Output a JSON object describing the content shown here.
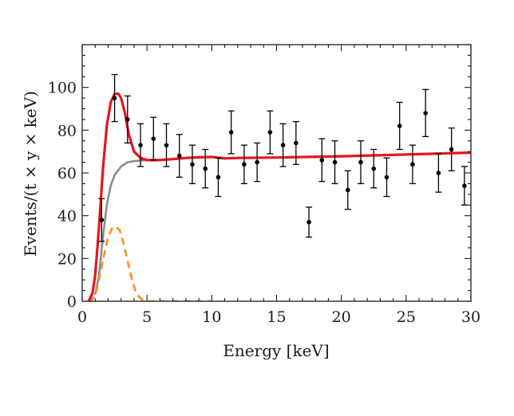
{
  "chart_data": {
    "type": "scatter",
    "title": "",
    "xlabel": "Energy [keV]",
    "ylabel": "Events/(t × y × keV)",
    "xlim": [
      0,
      30
    ],
    "ylim": [
      0,
      120
    ],
    "x_ticks": [
      0,
      5,
      10,
      15,
      20,
      25,
      30
    ],
    "y_ticks": [
      0,
      20,
      40,
      60,
      80,
      100
    ],
    "grid": false,
    "legend": "none",
    "series": [
      {
        "kind": "points_with_errorbars",
        "color": "#000000",
        "points": [
          {
            "x": 1.5,
            "y": 38,
            "err": 10
          },
          {
            "x": 2.5,
            "y": 95,
            "err": 11
          },
          {
            "x": 3.5,
            "y": 85,
            "err": 11
          },
          {
            "x": 4.5,
            "y": 73,
            "err": 10
          },
          {
            "x": 5.5,
            "y": 76,
            "err": 10
          },
          {
            "x": 6.5,
            "y": 73,
            "err": 10
          },
          {
            "x": 7.5,
            "y": 68,
            "err": 10
          },
          {
            "x": 8.5,
            "y": 64,
            "err": 9
          },
          {
            "x": 9.5,
            "y": 62,
            "err": 9
          },
          {
            "x": 10.5,
            "y": 58,
            "err": 9
          },
          {
            "x": 11.5,
            "y": 79,
            "err": 10
          },
          {
            "x": 12.5,
            "y": 64,
            "err": 9
          },
          {
            "x": 13.5,
            "y": 65,
            "err": 9
          },
          {
            "x": 14.5,
            "y": 79,
            "err": 10
          },
          {
            "x": 15.5,
            "y": 73,
            "err": 10
          },
          {
            "x": 16.5,
            "y": 74,
            "err": 10
          },
          {
            "x": 17.5,
            "y": 37,
            "err": 7
          },
          {
            "x": 18.5,
            "y": 66,
            "err": 10
          },
          {
            "x": 19.5,
            "y": 65,
            "err": 10
          },
          {
            "x": 20.5,
            "y": 52,
            "err": 9
          },
          {
            "x": 21.5,
            "y": 65,
            "err": 10
          },
          {
            "x": 22.5,
            "y": 62,
            "err": 9
          },
          {
            "x": 23.5,
            "y": 58,
            "err": 9
          },
          {
            "x": 24.5,
            "y": 82,
            "err": 11
          },
          {
            "x": 25.5,
            "y": 64,
            "err": 9
          },
          {
            "x": 26.5,
            "y": 88,
            "err": 11
          },
          {
            "x": 27.5,
            "y": 60,
            "err": 9
          },
          {
            "x": 28.5,
            "y": 71,
            "err": 10
          },
          {
            "x": 29.5,
            "y": 54,
            "err": 9
          }
        ]
      },
      {
        "kind": "line",
        "color": "#e8141e",
        "style": "solid",
        "x": [
          0.5,
          0.8,
          1.0,
          1.3,
          1.6,
          1.9,
          2.2,
          2.5,
          2.8,
          3.0,
          3.3,
          3.6,
          4.0,
          4.5,
          5.0,
          6.0,
          7.0,
          8.0,
          9.0,
          10.0,
          11.0,
          12.0,
          15.0,
          20.0,
          25.0,
          30.0
        ],
        "y": [
          0,
          4,
          12,
          35,
          62,
          82,
          93,
          97,
          97,
          95,
          88,
          78,
          70,
          67,
          66,
          66,
          66.5,
          67,
          67.3,
          67.5,
          66.8,
          67,
          67.2,
          67.8,
          68.6,
          69.5
        ]
      },
      {
        "kind": "line",
        "color": "#8c8c8c",
        "style": "solid",
        "x": [
          1.0,
          1.3,
          1.6,
          1.9,
          2.2,
          2.5,
          3.0,
          3.5,
          4.0,
          4.5,
          5.0
        ],
        "y": [
          3,
          12,
          30,
          45,
          54,
          59,
          63,
          65,
          65.5,
          65.8,
          66
        ]
      },
      {
        "kind": "line",
        "color": "#ff8c1a",
        "style": "dashed",
        "x": [
          0.5,
          0.8,
          1.1,
          1.4,
          1.7,
          2.0,
          2.3,
          2.6,
          2.9,
          3.2,
          3.5,
          3.8,
          4.1,
          4.4,
          4.7,
          5.0,
          6.0,
          7.0,
          8.0,
          9.0,
          10.0
        ],
        "y": [
          0,
          1,
          5,
          13,
          22,
          30,
          34,
          35,
          33,
          27,
          19,
          11,
          5,
          2,
          0.5,
          0,
          0,
          0,
          0,
          0,
          0
        ]
      }
    ]
  }
}
